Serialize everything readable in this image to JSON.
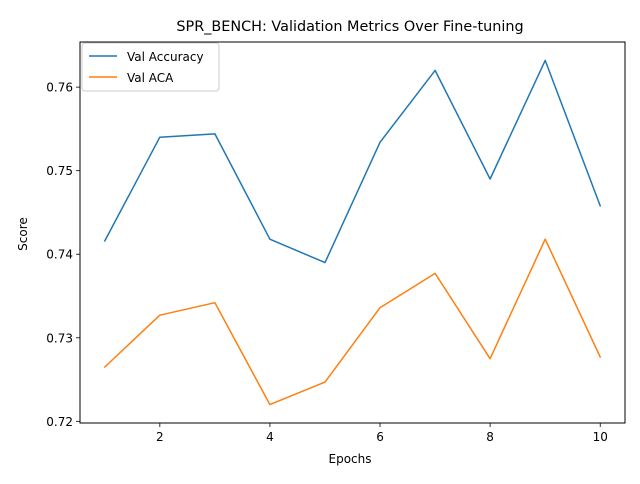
{
  "chart_data": {
    "type": "line",
    "title": "SPR_BENCH: Validation Metrics Over Fine-tuning",
    "xlabel": "Epochs",
    "ylabel": "Score",
    "x": [
      1,
      2,
      3,
      4,
      5,
      6,
      7,
      8,
      9,
      10
    ],
    "xlim": [
      0.55,
      10.45
    ],
    "ylim": [
      0.7198,
      0.7654
    ],
    "xticks": [
      2,
      4,
      6,
      8,
      10
    ],
    "yticks": [
      0.72,
      0.73,
      0.74,
      0.75,
      0.76
    ],
    "ytick_labels": [
      "0.72",
      "0.73",
      "0.74",
      "0.75",
      "0.76"
    ],
    "grid": false,
    "legend_position": "top-left",
    "series": [
      {
        "name": "Val Accuracy",
        "color": "#1f77b4",
        "values": [
          0.7416,
          0.754,
          0.7544,
          0.7418,
          0.739,
          0.7534,
          0.762,
          0.749,
          0.7632,
          0.7458
        ]
      },
      {
        "name": "Val ACA",
        "color": "#ff7f0e",
        "values": [
          0.7265,
          0.7327,
          0.7342,
          0.722,
          0.7247,
          0.7336,
          0.7377,
          0.7275,
          0.7418,
          0.7277
        ]
      }
    ]
  }
}
